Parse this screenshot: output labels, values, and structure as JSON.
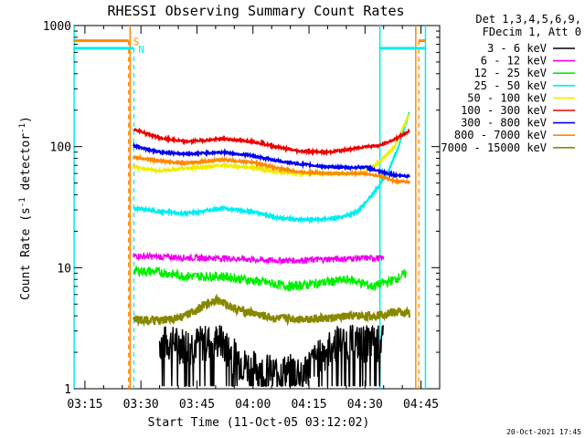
{
  "chart_data": {
    "type": "line",
    "title": "RHESSI Observing Summary Count Rates",
    "xlabel": "Start Time (11-Oct-05 03:12:02)",
    "ylabel": "Count Rate (s",
    "ylabel_sup1": "-1",
    "ylabel_mid": " detector",
    "ylabel_sup2": "-1",
    "ylabel_end": ")",
    "y_scale": "log",
    "ylim": [
      1,
      1000
    ],
    "xlim_min": [
      3,
      12,
      5
    ],
    "x_ticks": [
      {
        "label": "03:15",
        "min": 195
      },
      {
        "label": "03:30",
        "min": 210
      },
      {
        "label": "03:45",
        "min": 225
      },
      {
        "label": "04:00",
        "min": 240
      },
      {
        "label": "04:15",
        "min": 255
      },
      {
        "label": "04:30",
        "min": 270
      },
      {
        "label": "04:45",
        "min": 285
      }
    ],
    "y_ticks": [
      {
        "label": "1",
        "value": 1
      },
      {
        "label": "10",
        "value": 10
      },
      {
        "label": "100",
        "value": 100
      },
      {
        "label": "1000",
        "value": 1000
      }
    ],
    "legend": {
      "header1": "Det 1,3,4,5,6,9,",
      "header2": "FDecim 1, Att 0",
      "placement": "right"
    },
    "series": [
      {
        "name": "3 - 6 keV",
        "color": "#000000",
        "values": [
          [
            215,
            2.5
          ],
          [
            223,
            2.4
          ],
          [
            231,
            2.6
          ],
          [
            238,
            1.6
          ],
          [
            246,
            1.4
          ],
          [
            254,
            1.5
          ],
          [
            262,
            2.5
          ],
          [
            270,
            2.5
          ],
          [
            275,
            2.5
          ]
        ]
      },
      {
        "name": "6 - 12 keV",
        "color": "#ee00ee",
        "values": [
          [
            208,
            12.5
          ],
          [
            215,
            12.3
          ],
          [
            222,
            12.1
          ],
          [
            232,
            12
          ],
          [
            244,
            11.5
          ],
          [
            252,
            11.5
          ],
          [
            262,
            11.8
          ],
          [
            270,
            12
          ],
          [
            275,
            12
          ]
        ]
      },
      {
        "name": "12 - 25 keV",
        "color": "#00ee00",
        "values": [
          [
            208,
            9.5
          ],
          [
            215,
            9.2
          ],
          [
            222,
            8.5
          ],
          [
            232,
            8.5
          ],
          [
            244,
            7.5
          ],
          [
            250,
            7.0
          ],
          [
            258,
            7.5
          ],
          [
            266,
            8
          ],
          [
            272,
            7.0
          ],
          [
            278,
            8.0
          ],
          [
            281,
            9.0
          ]
        ]
      },
      {
        "name": "25 - 50 keV",
        "color": "#00eeee",
        "values": [
          [
            208,
            31
          ],
          [
            215,
            29
          ],
          [
            222,
            28
          ],
          [
            232,
            31
          ],
          [
            240,
            29
          ],
          [
            246,
            26
          ],
          [
            252,
            25
          ],
          [
            258,
            25
          ],
          [
            264,
            26
          ],
          [
            268,
            29
          ],
          [
            272,
            40
          ],
          [
            276,
            60
          ],
          [
            279,
            100
          ],
          [
            282,
            200
          ]
        ]
      },
      {
        "name": "50 - 100 keV",
        "color": "#eeee00",
        "values": [
          [
            208,
            68
          ],
          [
            215,
            63
          ],
          [
            222,
            66
          ],
          [
            232,
            70
          ],
          [
            240,
            67
          ],
          [
            246,
            62
          ],
          [
            252,
            60
          ],
          [
            260,
            60
          ],
          [
            266,
            60
          ],
          [
            270,
            62
          ],
          [
            274,
            75
          ],
          [
            278,
            100
          ],
          [
            282,
            190
          ]
        ]
      },
      {
        "name": "100 - 300 keV",
        "color": "#ee0000",
        "values": [
          [
            208,
            140
          ],
          [
            215,
            118
          ],
          [
            222,
            110
          ],
          [
            232,
            116
          ],
          [
            240,
            110
          ],
          [
            246,
            100
          ],
          [
            252,
            92
          ],
          [
            260,
            90
          ],
          [
            266,
            95
          ],
          [
            270,
            100
          ],
          [
            274,
            102
          ],
          [
            278,
            115
          ],
          [
            282,
            135
          ]
        ]
      },
      {
        "name": "300 - 800 keV",
        "color": "#0000ee",
        "values": [
          [
            208,
            102
          ],
          [
            215,
            90
          ],
          [
            222,
            87
          ],
          [
            232,
            90
          ],
          [
            240,
            84
          ],
          [
            246,
            77
          ],
          [
            252,
            72
          ],
          [
            260,
            68
          ],
          [
            266,
            67
          ],
          [
            270,
            68
          ],
          [
            274,
            62
          ],
          [
            278,
            58
          ],
          [
            282,
            57
          ]
        ]
      },
      {
        "name": "800 - 7000 keV",
        "color": "#ff8800",
        "values": [
          [
            208,
            82
          ],
          [
            215,
            76
          ],
          [
            222,
            73
          ],
          [
            232,
            78
          ],
          [
            240,
            74
          ],
          [
            246,
            67
          ],
          [
            252,
            62
          ],
          [
            260,
            60
          ],
          [
            266,
            60
          ],
          [
            270,
            60
          ],
          [
            274,
            57
          ],
          [
            278,
            52
          ],
          [
            282,
            51
          ]
        ]
      },
      {
        "name": "7000 - 15000 keV",
        "color": "#888800",
        "values": [
          [
            208,
            3.8
          ],
          [
            215,
            3.6
          ],
          [
            222,
            4.0
          ],
          [
            230,
            5.5
          ],
          [
            236,
            4.5
          ],
          [
            240,
            4.2
          ],
          [
            246,
            3.8
          ],
          [
            252,
            3.8
          ],
          [
            260,
            3.8
          ],
          [
            266,
            4.0
          ],
          [
            272,
            4.0
          ],
          [
            278,
            4.3
          ],
          [
            282,
            4.2
          ]
        ]
      }
    ],
    "flags": [
      {
        "label": "S",
        "color": "#ff8800",
        "level": 750,
        "ranges": [
          [
            192.1,
            206.7
          ],
          [
            284.4,
            286.2
          ]
        ],
        "markers_min": [
          206.7,
          284.4
        ]
      },
      {
        "label": "N",
        "color": "#00eeee",
        "level": 650,
        "ranges": [
          [
            192.1,
            208.1
          ],
          [
            274.0,
            286.2
          ]
        ],
        "markers_min": [
          208.1,
          274.0
        ]
      }
    ],
    "orbit_lines": [
      {
        "color": "#00eeee",
        "min": 192.1
      },
      {
        "color": "#00eeee",
        "min": 274.0
      },
      {
        "color": "#00eeee",
        "min": 286.2
      },
      {
        "color": "#ff8800",
        "min": 207.1
      },
      {
        "color": "#ff8800",
        "min": 283.6
      }
    ],
    "timestamp": "20-Oct-2021 17:45"
  }
}
